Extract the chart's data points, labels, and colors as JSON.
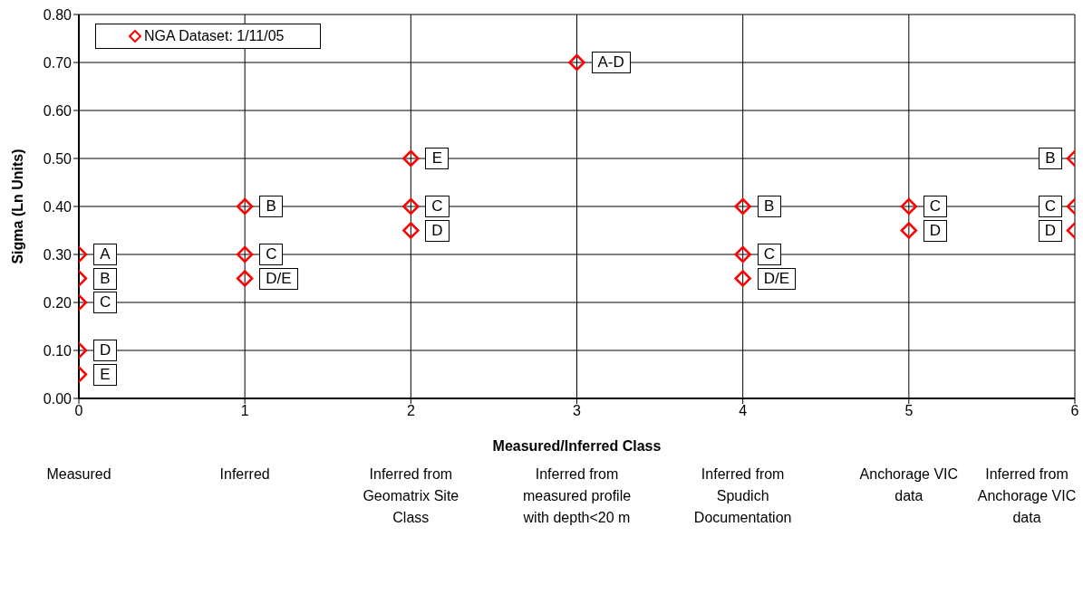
{
  "chart_data": {
    "type": "scatter",
    "xlabel": "Measured/Inferred Class",
    "ylabel": "Sigma (Ln Units)",
    "xlim": [
      0,
      6
    ],
    "xticks": [
      0,
      1,
      2,
      3,
      4,
      5,
      6
    ],
    "ylim": [
      0,
      0.8
    ],
    "yticks": [
      {
        "value": 0,
        "label": "0.00"
      },
      {
        "value": 0.1,
        "label": "0.10"
      },
      {
        "value": 0.2,
        "label": "0.20"
      },
      {
        "value": 0.3,
        "label": "0.30"
      },
      {
        "value": 0.4,
        "label": "0.40"
      },
      {
        "value": 0.5,
        "label": "0.50"
      },
      {
        "value": 0.6,
        "label": "0.60"
      },
      {
        "value": 0.7,
        "label": "0.70"
      },
      {
        "value": 0.8,
        "label": "0.80"
      }
    ],
    "grid": true,
    "legend": "top left",
    "marker": "diamond",
    "series": [
      {
        "name": "NGA Dataset: 1/11/05",
        "color": "#ff0000",
        "x": [
          0,
          0,
          0,
          0,
          0,
          1,
          1,
          1,
          2,
          2,
          2,
          3,
          4,
          4,
          4,
          5,
          5,
          6,
          6,
          6
        ],
        "values": [
          0.3,
          0.25,
          0.2,
          0.1,
          0.05,
          0.4,
          0.3,
          0.25,
          0.5,
          0.4,
          0.35,
          0.7,
          0.4,
          0.3,
          0.25,
          0.4,
          0.35,
          0.5,
          0.4,
          0.35
        ]
      }
    ],
    "annotations": [
      {
        "text": "A",
        "x": 0,
        "y": 0.3
      },
      {
        "text": "B",
        "x": 0,
        "y": 0.25
      },
      {
        "text": "C",
        "x": 0,
        "y": 0.2
      },
      {
        "text": "D",
        "x": 0,
        "y": 0.1
      },
      {
        "text": "E",
        "x": 0,
        "y": 0.05
      },
      {
        "text": "B",
        "x": 1,
        "y": 0.4
      },
      {
        "text": "C",
        "x": 1,
        "y": 0.3
      },
      {
        "text": "D/E",
        "x": 1,
        "y": 0.25
      },
      {
        "text": "E",
        "x": 2,
        "y": 0.5
      },
      {
        "text": "C",
        "x": 2,
        "y": 0.4
      },
      {
        "text": "D",
        "x": 2,
        "y": 0.35
      },
      {
        "text": "A-D",
        "x": 3,
        "y": 0.7
      },
      {
        "text": "B",
        "x": 4,
        "y": 0.4
      },
      {
        "text": "C",
        "x": 4,
        "y": 0.3
      },
      {
        "text": "D/E",
        "x": 4,
        "y": 0.25
      },
      {
        "text": "C",
        "x": 5,
        "y": 0.4
      },
      {
        "text": "D",
        "x": 5,
        "y": 0.35
      },
      {
        "text": "B",
        "x": 6,
        "y": 0.5
      },
      {
        "text": "C",
        "x": 6,
        "y": 0.4
      },
      {
        "text": "D",
        "x": 6,
        "y": 0.35
      },
      "Measured",
      "Inferred",
      "Inferred from Geomatrix Site Class",
      "Inferred from measured profile with depth<20 m",
      "Inferred from Spudich Documentation",
      "Anchorage VIC data",
      "Inferred from Anchorage VIC data"
    ]
  }
}
